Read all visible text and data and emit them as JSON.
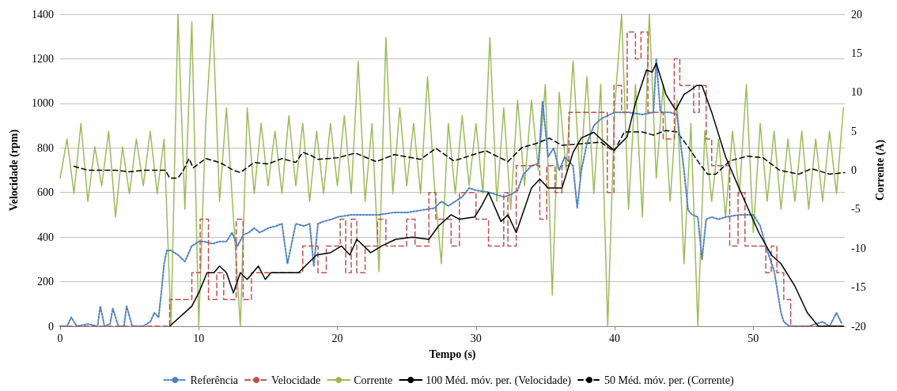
{
  "chart_data": {
    "type": "line",
    "xlabel": "Tempo (s)",
    "ylabel": "Velocidade (rpm)",
    "y2label": "Corrente (A)",
    "xlim": [
      0,
      56.6
    ],
    "xticks": [
      0,
      10,
      20,
      30,
      40,
      50
    ],
    "ylim": [
      0,
      1400
    ],
    "yticks": [
      0,
      200,
      400,
      600,
      800,
      1000,
      1200,
      1400
    ],
    "y2lim": [
      -20,
      20
    ],
    "y2ticks": [
      -20,
      -15,
      -10,
      -5,
      0,
      5,
      10,
      15,
      20
    ],
    "grid": "y",
    "legend": "bottom",
    "marker": "none",
    "series": [
      {
        "name": "Referência",
        "type": "line",
        "color": "#4f81bd",
        "line_style": "dotted",
        "x": [
          0,
          0.5,
          0.8,
          1.2,
          2,
          2.7,
          2.9,
          3.2,
          3.6,
          3.8,
          4.2,
          4.6,
          4.8,
          5.2,
          6,
          6.5,
          6.8,
          7.1,
          7.3,
          7.5,
          7.7,
          8,
          8.5,
          9,
          9.5,
          10,
          10.4,
          11,
          11.5,
          12,
          12.4,
          12.8,
          13.2,
          13.6,
          14,
          14.4,
          15,
          15.6,
          16,
          16.4,
          17,
          17.6,
          18,
          18.3,
          18.6,
          19,
          19.6,
          20,
          21,
          22,
          23,
          24,
          25,
          26,
          27,
          27.5,
          28,
          29,
          29.5,
          30,
          31,
          32,
          32.5,
          33,
          33.4,
          34,
          34.5,
          34.8,
          35.2,
          35.6,
          36,
          36.4,
          37,
          37.3,
          37.6,
          38,
          38.5,
          39,
          40,
          41,
          42,
          42.8,
          43,
          43.3,
          43.6,
          44,
          44.5,
          45,
          45.3,
          45.6,
          46,
          46.3,
          46.6,
          47,
          47.5,
          48,
          49,
          50,
          50.5,
          51,
          51.5,
          52,
          52.2,
          52.6,
          53,
          54,
          55,
          55.5,
          56,
          56.4
        ],
        "values": [
          0,
          0,
          40,
          0,
          10,
          0,
          90,
          0,
          10,
          80,
          0,
          0,
          90,
          0,
          0,
          20,
          60,
          40,
          150,
          280,
          340,
          340,
          320,
          290,
          360,
          380,
          380,
          370,
          380,
          380,
          420,
          360,
          410,
          420,
          440,
          420,
          440,
          450,
          460,
          280,
          460,
          450,
          460,
          270,
          460,
          470,
          480,
          490,
          500,
          500,
          500,
          510,
          510,
          520,
          530,
          560,
          540,
          580,
          620,
          610,
          600,
          580,
          590,
          610,
          680,
          720,
          730,
          1010,
          760,
          800,
          700,
          760,
          720,
          530,
          700,
          820,
          900,
          930,
          960,
          960,
          950,
          960,
          1200,
          960,
          960,
          960,
          950,
          700,
          520,
          500,
          490,
          300,
          480,
          490,
          480,
          490,
          500,
          500,
          450,
          340,
          250,
          60,
          20,
          0,
          0,
          0,
          20,
          0,
          60,
          10
        ]
      },
      {
        "name": "Velocidade",
        "type": "step",
        "color": "#c0504d",
        "line_style": "dashed",
        "x": [
          0,
          7.9,
          9.5,
          10.1,
          10.7,
          11.3,
          11.8,
          12.7,
          13.2,
          13.8,
          17.5,
          18.6,
          19.2,
          20.2,
          20.6,
          21.0,
          21.4,
          22.0,
          22.9,
          23.5,
          25.0,
          25.6,
          26.6,
          27.1,
          28.2,
          28.8,
          30.0,
          30.9,
          32.0,
          32.3,
          32.9,
          34.6,
          35.1,
          35.7,
          36.2,
          36.7,
          37.1,
          39.0,
          39.47,
          39.95,
          40.5,
          40.9,
          41.5,
          41.9,
          42.4,
          43.5,
          44.3,
          44.7,
          45.7,
          46.1,
          46.6,
          47.0,
          48.3,
          48.9,
          49.4,
          50.9,
          51.3,
          51.7,
          52.2,
          52.7,
          56.5
        ],
        "values": [
          0,
          120,
          240,
          480,
          120,
          240,
          120,
          480,
          120,
          240,
          360,
          240,
          360,
          480,
          240,
          480,
          240,
          360,
          480,
          360,
          480,
          360,
          600,
          480,
          360,
          600,
          480,
          360,
          600,
          360,
          720,
          480,
          720,
          600,
          720,
          960,
          960,
          960,
          600,
          1080,
          960,
          1320,
          1200,
          1320,
          960,
          840,
          1200,
          1080,
          960,
          1080,
          840,
          720,
          360,
          600,
          360,
          240,
          360,
          240,
          120,
          0,
          0
        ]
      },
      {
        "name": "Corrente",
        "type": "line",
        "axis": "y2",
        "color": "#9bbb59",
        "line_style": "solid",
        "x": [
          0,
          0.5,
          1,
          1.5,
          2,
          2.5,
          3,
          3.5,
          4,
          4.5,
          5,
          5.5,
          6,
          6.5,
          7,
          7.5,
          8,
          8.5,
          9,
          9.5,
          10,
          10.5,
          11,
          11.5,
          12,
          12.5,
          13,
          13.5,
          14,
          14.5,
          15,
          15.5,
          16,
          16.5,
          17,
          17.5,
          18,
          18.5,
          19,
          19.5,
          20,
          20.5,
          21,
          21.5,
          22,
          22.5,
          23,
          23.5,
          24,
          24.5,
          25,
          25.5,
          26,
          26.5,
          27,
          27.5,
          28,
          28.5,
          29,
          29.5,
          30,
          30.5,
          31,
          31.5,
          32,
          32.5,
          33,
          33.5,
          34,
          34.5,
          35,
          35.5,
          36,
          36.5,
          37,
          37.5,
          38,
          38.5,
          39,
          39.5,
          40,
          40.5,
          41,
          41.5,
          42,
          42.5,
          43,
          43.5,
          44,
          44.5,
          45,
          45.5,
          46,
          46.5,
          47,
          47.5,
          48,
          48.5,
          49,
          49.5,
          50,
          50.5,
          51,
          51.5,
          52,
          52.5,
          53,
          53.5,
          54,
          54.5,
          55,
          55.5,
          56,
          56.5
        ],
        "values": [
          -1,
          4,
          -3,
          6,
          -4,
          3,
          -2,
          5,
          -6,
          3,
          -3,
          4,
          -2,
          5,
          -3,
          4,
          -20,
          20,
          -5,
          19,
          -20,
          6,
          20,
          -4,
          8,
          -6,
          -20,
          8,
          -3,
          6,
          -2,
          5,
          -3,
          7,
          -2,
          6,
          -4,
          5,
          -3,
          6,
          -2,
          7,
          -3,
          14,
          -4,
          6,
          -13,
          17,
          -3,
          8,
          -2,
          6,
          -3,
          12,
          -2,
          -12,
          6,
          -3,
          7,
          -2,
          6,
          -3,
          17,
          -4,
          8,
          -5,
          9,
          -2,
          9,
          0,
          11,
          -16,
          10,
          0,
          14,
          -1,
          12,
          -3,
          11,
          -20,
          8,
          20,
          -5,
          11,
          -6,
          20,
          -1,
          11,
          -4,
          9,
          -12,
          6,
          -20,
          5,
          -4,
          4,
          -6,
          5,
          -3,
          11,
          -8,
          6,
          -4,
          5,
          -5,
          4,
          -4,
          5,
          -5,
          4,
          -4,
          5,
          -3,
          8
        ]
      },
      {
        "name": "100 Méd. móv. per. (Velocidade)",
        "type": "line",
        "color": "#000000",
        "line_style": "solid",
        "x": [
          7.9,
          9.5,
          10,
          10.6,
          11.1,
          11.5,
          12,
          12.5,
          13,
          13.5,
          14.3,
          14.8,
          15.2,
          17.2,
          18.5,
          19.5,
          20.3,
          20.9,
          21.4,
          22.4,
          23.2,
          24.2,
          25.4,
          26.6,
          27.3,
          28.2,
          28.8,
          29.9,
          30.4,
          30.9,
          31.8,
          32.3,
          32.9,
          34,
          34.6,
          35.2,
          36.2,
          37,
          37.6,
          38.5,
          39,
          39.95,
          40.9,
          41.5,
          42.3,
          42.7,
          43,
          43.7,
          44.4,
          45,
          45.5,
          45.9,
          46.3,
          47,
          48,
          48.9,
          49.4,
          50.4,
          51.3,
          52,
          53,
          53.9,
          54.7,
          56.5
        ],
        "values": [
          0,
          90,
          150,
          240,
          240,
          270,
          240,
          150,
          240,
          210,
          270,
          210,
          240,
          240,
          320,
          330,
          360,
          320,
          390,
          330,
          360,
          390,
          400,
          390,
          450,
          500,
          480,
          490,
          540,
          600,
          470,
          500,
          420,
          620,
          660,
          620,
          620,
          780,
          845,
          870,
          840,
          790,
          850,
          1000,
          1150,
          1140,
          1180,
          1040,
          970,
          1040,
          1060,
          1080,
          1080,
          960,
          760,
          630,
          560,
          420,
          320,
          280,
          180,
          60,
          0,
          0
        ]
      },
      {
        "name": "50 Méd. móv. per. (Corrente)",
        "type": "line",
        "axis": "y2",
        "color": "#000000",
        "line_style": "dashed",
        "x": [
          1,
          2,
          3,
          4,
          5,
          6,
          7,
          7.6,
          7.9,
          8.5,
          8.9,
          9.3,
          9.6,
          10.5,
          11.5,
          12.5,
          13,
          14,
          15,
          16,
          17,
          17.5,
          18.1,
          18.6,
          20,
          21.3,
          22.8,
          24.1,
          26,
          27.1,
          28.4,
          30.7,
          32.3,
          33.3,
          34.3,
          35.3,
          36.2,
          37.6,
          39.0,
          39.95,
          40.7,
          42,
          42.8,
          43.7,
          44.5,
          45.3,
          46.1,
          46.7,
          47.3,
          48.3,
          49.6,
          50.7,
          51.9,
          53.3,
          54.2,
          55.5,
          56.6
        ],
        "values": [
          0.5,
          0,
          0,
          0,
          -0.2,
          0,
          0,
          0,
          -1,
          -1,
          0,
          1.5,
          0.3,
          1.5,
          1,
          0,
          -0.3,
          1,
          0.8,
          1.5,
          1,
          2.3,
          1.9,
          1.4,
          1.6,
          2.2,
          1.1,
          2,
          1.4,
          2.8,
          1.2,
          2.5,
          1.1,
          2.9,
          3.4,
          4.1,
          3.2,
          3.4,
          3.6,
          2.4,
          4.9,
          4.9,
          4.5,
          5.1,
          4.9,
          3,
          0.9,
          -0.5,
          -0.5,
          1.2,
          1.8,
          1.6,
          0,
          -0.5,
          0.2,
          -0.5,
          -0.3
        ]
      }
    ]
  }
}
